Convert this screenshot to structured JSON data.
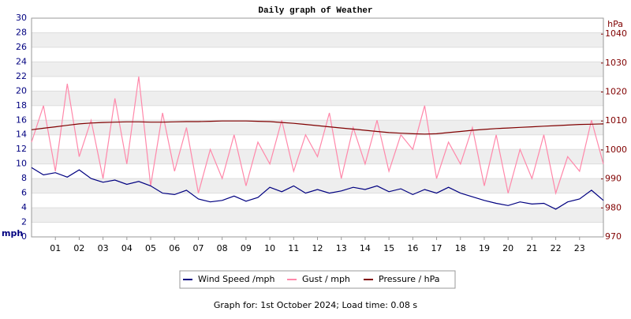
{
  "chart_data": {
    "type": "line",
    "title": "Daily graph of Weather",
    "y_label": "mph",
    "y2_label": "hPa",
    "caption": "Graph for: 1st October 2024; Load time: 0.08 s",
    "x": [
      0,
      0.5,
      1,
      1.5,
      2,
      2.5,
      3,
      3.5,
      4,
      4.5,
      5,
      5.5,
      6,
      6.5,
      7,
      7.5,
      8,
      8.5,
      9,
      9.5,
      10,
      10.5,
      11,
      11.5,
      12,
      12.5,
      13,
      13.5,
      14,
      14.5,
      15,
      15.5,
      16,
      16.5,
      17,
      17.5,
      18,
      18.5,
      19,
      19.5,
      20,
      20.5,
      21,
      21.5,
      22,
      22.5,
      23,
      23.5,
      24
    ],
    "xlim": [
      0,
      24
    ],
    "xticks": [
      {
        "value": 1,
        "label": "01"
      },
      {
        "value": 2,
        "label": "02"
      },
      {
        "value": 3,
        "label": "03"
      },
      {
        "value": 4,
        "label": "04"
      },
      {
        "value": 5,
        "label": "05"
      },
      {
        "value": 6,
        "label": "06"
      },
      {
        "value": 7,
        "label": "07"
      },
      {
        "value": 8,
        "label": "08"
      },
      {
        "value": 9,
        "label": "09"
      },
      10,
      11,
      12,
      13,
      14,
      15,
      16,
      17,
      18,
      19,
      20,
      21,
      22,
      23
    ],
    "ylim": [
      0,
      30
    ],
    "yticks": [
      0,
      2,
      4,
      6,
      8,
      10,
      12,
      14,
      16,
      18,
      20,
      22,
      24,
      26,
      28,
      30
    ],
    "y2lim": [
      970,
      1045.5
    ],
    "y2ticks": [
      970,
      980,
      990,
      1000,
      1010,
      1020,
      1030,
      1040
    ],
    "series": [
      {
        "name": "Gust / mph",
        "color": "#ff88aa",
        "values": [
          13,
          18,
          9,
          21,
          11,
          16,
          8,
          19,
          10,
          22,
          7,
          17,
          9,
          15,
          6,
          12,
          8,
          14,
          7,
          13,
          10,
          16,
          9,
          14,
          11,
          17,
          8,
          15,
          10,
          16,
          9,
          14,
          12,
          18,
          8,
          13,
          10,
          15,
          7,
          14,
          6,
          12,
          8,
          14,
          6,
          11,
          9,
          16,
          10
        ]
      },
      {
        "name": "Wind Speed /mph",
        "color": "#000080",
        "values": [
          9.5,
          8.5,
          8.8,
          8.2,
          9.2,
          8.0,
          7.5,
          7.8,
          7.2,
          7.6,
          7.0,
          6.0,
          5.8,
          6.4,
          5.2,
          4.8,
          5.0,
          5.6,
          4.9,
          5.4,
          6.8,
          6.2,
          7.0,
          6.0,
          6.5,
          6.0,
          6.3,
          6.8,
          6.5,
          7.0,
          6.2,
          6.6,
          5.8,
          6.5,
          6.0,
          6.8,
          6.0,
          5.5,
          5.0,
          4.6,
          4.3,
          4.8,
          4.5,
          4.6,
          3.8,
          4.8,
          5.2,
          6.4,
          5.0
        ]
      },
      {
        "name": "Pressure / hPa",
        "color": "#800000",
        "axis": "y2",
        "values": [
          1007,
          1007.5,
          1008,
          1008.5,
          1009,
          1009.3,
          1009.5,
          1009.6,
          1009.7,
          1009.7,
          1009.6,
          1009.6,
          1009.7,
          1009.8,
          1009.8,
          1009.9,
          1010,
          1010,
          1010,
          1009.9,
          1009.8,
          1009.5,
          1009.2,
          1008.8,
          1008.4,
          1008,
          1007.6,
          1007.2,
          1006.8,
          1006.4,
          1006,
          1005.8,
          1005.6,
          1005.5,
          1005.6,
          1006,
          1006.4,
          1006.8,
          1007.1,
          1007.4,
          1007.6,
          1007.8,
          1008,
          1008.2,
          1008.4,
          1008.6,
          1008.8,
          1008.9,
          1009
        ]
      }
    ],
    "legend_order": [
      1,
      0,
      2
    ],
    "legend": "bottom",
    "grid": true
  }
}
